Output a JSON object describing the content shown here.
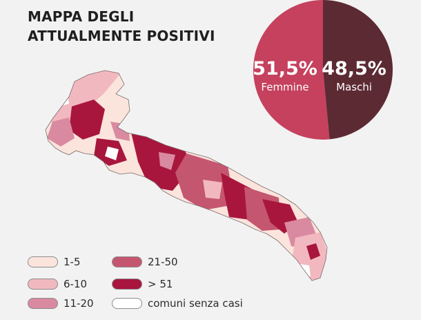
{
  "title": {
    "line1": "MAPPA DEGLI",
    "line2": "ATTUALMENTE POSITIVI"
  },
  "gender_split": {
    "female": {
      "percent_label": "51,5%",
      "label": "Femmine",
      "value": 51.5,
      "color": "#c5415e"
    },
    "male": {
      "percent_label": "48,5%",
      "label": "Maschi",
      "value": 48.5,
      "color": "#5c2a33"
    }
  },
  "legend": [
    {
      "label": "1-5",
      "color": "#fbe4dc"
    },
    {
      "label": "6-10",
      "color": "#f2b8c0"
    },
    {
      "label": "11-20",
      "color": "#d98aa0"
    },
    {
      "label": "21-50",
      "color": "#c55670"
    },
    {
      "label": "> 51",
      "color": "#a8163e"
    },
    {
      "label": "comuni senza casi",
      "color": "#ffffff"
    }
  ]
}
